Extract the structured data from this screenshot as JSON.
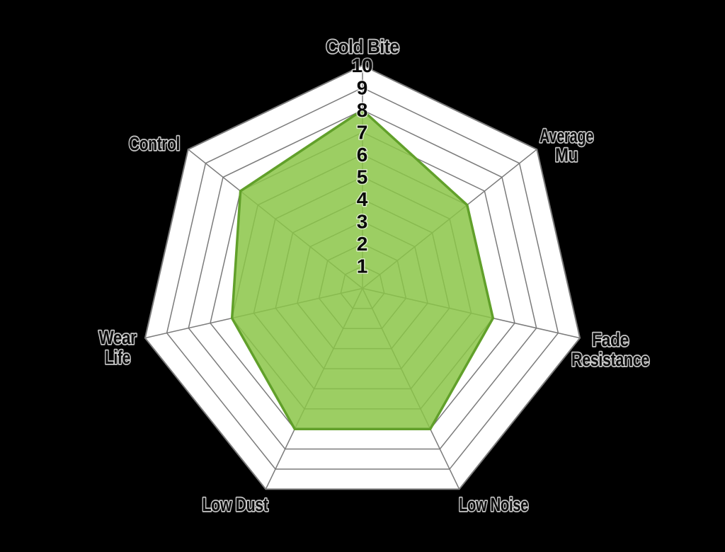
{
  "page": {
    "background_color": "#000000"
  },
  "chart_data": {
    "type": "radar",
    "title": "",
    "categories": [
      "Cold Bite",
      "Average Mu",
      "Fade Resistance",
      "Low Noise",
      "Low Dust",
      "Wear Life",
      "Control"
    ],
    "category_lines": [
      [
        "Cold Bite"
      ],
      [
        "Average",
        "Mu"
      ],
      [
        "Fade",
        "Resistance"
      ],
      [
        "Low Noise"
      ],
      [
        "Low Dust"
      ],
      [
        "Wear",
        "Life"
      ],
      [
        "Control"
      ]
    ],
    "series": [
      {
        "values": [
          8,
          6,
          6,
          7,
          7,
          6,
          7
        ]
      }
    ],
    "scale": {
      "min": 0,
      "max": 10,
      "tick_labels": [
        "1",
        "2",
        "3",
        "4",
        "5",
        "6",
        "7",
        "8",
        "9",
        "10"
      ]
    },
    "grid": true,
    "legend_visible": false,
    "colors": {
      "background": "#000000",
      "web_fill": "#ffffff",
      "grid_line": "#7b7b7b",
      "data_fill": "#8bc548",
      "data_fill_opacity": 0.85,
      "data_stroke": "#61a02a",
      "tick_text": "#0a0a0a",
      "label_text": "#0a0a0a",
      "text_outline": "#ffffff"
    }
  }
}
